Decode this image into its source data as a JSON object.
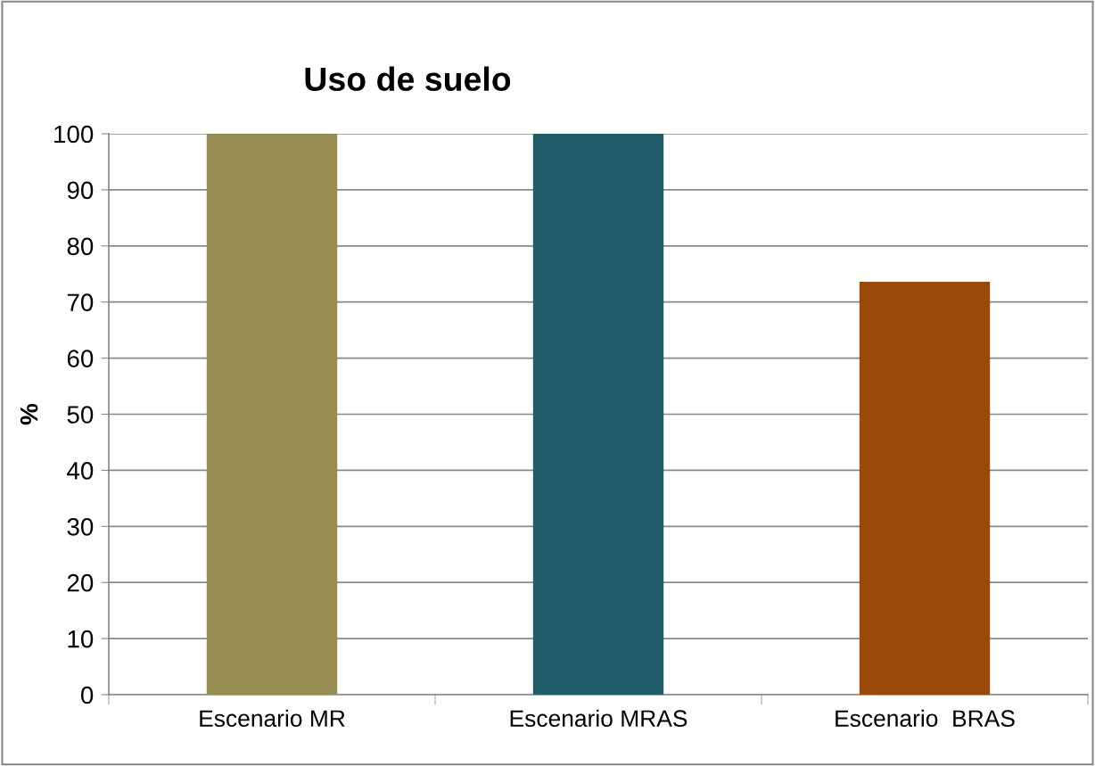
{
  "chart_data": {
    "type": "bar",
    "title": "Uso de suelo",
    "ylabel": "%",
    "categories": [
      "Escenario MR",
      "Escenario MRAS",
      "Escenario  BRAS"
    ],
    "values": [
      100,
      100,
      73.6
    ],
    "colors": [
      "#968b52",
      "#225b69",
      "#9a4a08"
    ],
    "ylim": [
      0,
      100
    ],
    "yticks": [
      0,
      10,
      20,
      30,
      40,
      50,
      60,
      70,
      80,
      90,
      100
    ],
    "grid": "y",
    "legend": false
  }
}
